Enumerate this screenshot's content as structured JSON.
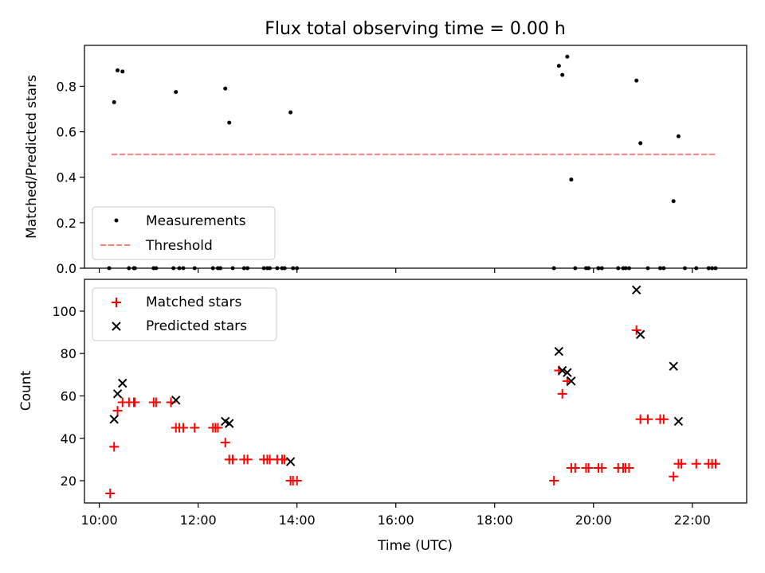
{
  "figure": {
    "title": "Flux total observing time = 0.00 h"
  },
  "chart_data": [
    {
      "type": "scatter",
      "ylabel": "Matched/Predicted stars",
      "ylim": [
        0,
        0.98
      ],
      "yticks": [
        0.0,
        0.2,
        0.4,
        0.6,
        0.8
      ],
      "ytick_labels": [
        "0.0",
        "0.2",
        "0.4",
        "0.6",
        "0.8"
      ],
      "xlim": [
        9.7,
        23.1
      ],
      "xticks": [
        10,
        12,
        14,
        16,
        18,
        20,
        22
      ],
      "legend": {
        "placement": "lower-left",
        "entries": [
          "Measurements",
          "Threshold"
        ]
      },
      "series": [
        {
          "name": "Measurements",
          "marker": "dot",
          "color": "#000000",
          "x": [
            10.2,
            10.3,
            10.37,
            10.47,
            10.6,
            10.7,
            10.72,
            11.1,
            11.15,
            11.5,
            11.55,
            11.62,
            11.7,
            11.93,
            12.3,
            12.4,
            12.45,
            12.55,
            12.63,
            12.7,
            12.93,
            13.0,
            13.33,
            13.4,
            13.45,
            13.6,
            13.7,
            13.75,
            13.87,
            13.92,
            14.0,
            19.2,
            19.3,
            19.37,
            19.47,
            19.55,
            19.63,
            19.85,
            19.9,
            20.1,
            20.17,
            20.5,
            20.6,
            20.65,
            20.72,
            20.87,
            20.95,
            21.1,
            21.35,
            21.42,
            21.62,
            21.72,
            21.85,
            22.08,
            22.33,
            22.4,
            22.47
          ],
          "y": [
            0.0,
            0.73,
            0.87,
            0.865,
            0.0,
            0.0,
            0.0,
            0.0,
            0.0,
            0.0,
            0.775,
            0.0,
            0.0,
            0.0,
            0.0,
            0.0,
            0.0,
            0.79,
            0.64,
            0.0,
            0.0,
            0.0,
            0.0,
            0.0,
            0.0,
            0.0,
            0.0,
            0.0,
            0.685,
            0.0,
            0.0,
            0.0,
            0.89,
            0.85,
            0.93,
            0.39,
            0.0,
            0.0,
            0.0,
            0.0,
            0.0,
            0.0,
            0.0,
            0.0,
            0.0,
            0.825,
            0.55,
            0.0,
            0.0,
            0.0,
            0.295,
            0.58,
            0.0,
            0.0,
            0.0,
            0.0,
            0.0
          ]
        },
        {
          "name": "Threshold",
          "line": "dashed",
          "color": "#ff7f7f",
          "x": [
            10.25,
            22.5
          ],
          "y": [
            0.5,
            0.5
          ]
        }
      ]
    },
    {
      "type": "scatter",
      "xlabel": "Time (UTC)",
      "ylabel": "Count",
      "ylim": [
        9.5,
        115
      ],
      "yticks": [
        20,
        40,
        60,
        80,
        100
      ],
      "ytick_labels": [
        "20",
        "40",
        "60",
        "80",
        "100"
      ],
      "xlim": [
        9.7,
        23.1
      ],
      "xticks": [
        10,
        12,
        14,
        16,
        18,
        20,
        22
      ],
      "xtick_labels": [
        "10:00",
        "12:00",
        "14:00",
        "16:00",
        "18:00",
        "20:00",
        "22:00"
      ],
      "legend": {
        "placement": "upper-left",
        "entries": [
          "Matched stars",
          "Predicted stars"
        ]
      },
      "series": [
        {
          "name": "Matched stars",
          "marker": "plus",
          "color": "#ff0000",
          "x": [
            10.22,
            10.3,
            10.37,
            10.47,
            10.6,
            10.7,
            10.72,
            11.1,
            11.15,
            11.45,
            11.55,
            11.62,
            11.7,
            11.93,
            12.3,
            12.35,
            12.4,
            12.55,
            12.63,
            12.7,
            12.93,
            13.0,
            13.33,
            13.4,
            13.45,
            13.6,
            13.7,
            13.75,
            13.87,
            13.92,
            14.0,
            19.2,
            19.3,
            19.37,
            19.47,
            19.55,
            19.63,
            19.85,
            19.9,
            20.1,
            20.17,
            20.5,
            20.6,
            20.65,
            20.72,
            20.87,
            20.95,
            21.1,
            21.35,
            21.42,
            21.62,
            21.72,
            21.78,
            22.08,
            22.33,
            22.4,
            22.47
          ],
          "y": [
            14,
            36,
            53,
            57,
            57,
            57,
            57,
            57,
            57,
            57,
            45,
            45,
            45,
            45,
            45,
            45,
            45,
            38,
            30,
            30,
            30,
            30,
            30,
            30,
            30,
            30,
            30,
            30,
            20,
            20,
            20,
            20,
            72,
            61,
            67,
            26,
            26,
            26,
            26,
            26,
            26,
            26,
            26,
            26,
            26,
            91,
            49,
            49,
            49,
            49,
            22,
            28,
            28,
            28,
            28,
            28,
            28
          ]
        },
        {
          "name": "Predicted stars",
          "marker": "x",
          "color": "#000000",
          "x": [
            10.3,
            10.37,
            10.47,
            11.55,
            12.55,
            12.63,
            13.87,
            19.3,
            19.37,
            19.47,
            19.55,
            20.87,
            20.95,
            21.62,
            21.72
          ],
          "y": [
            49,
            61,
            66,
            58,
            48,
            47,
            29,
            81,
            72,
            71,
            67,
            110,
            89,
            74,
            48
          ]
        }
      ]
    }
  ]
}
